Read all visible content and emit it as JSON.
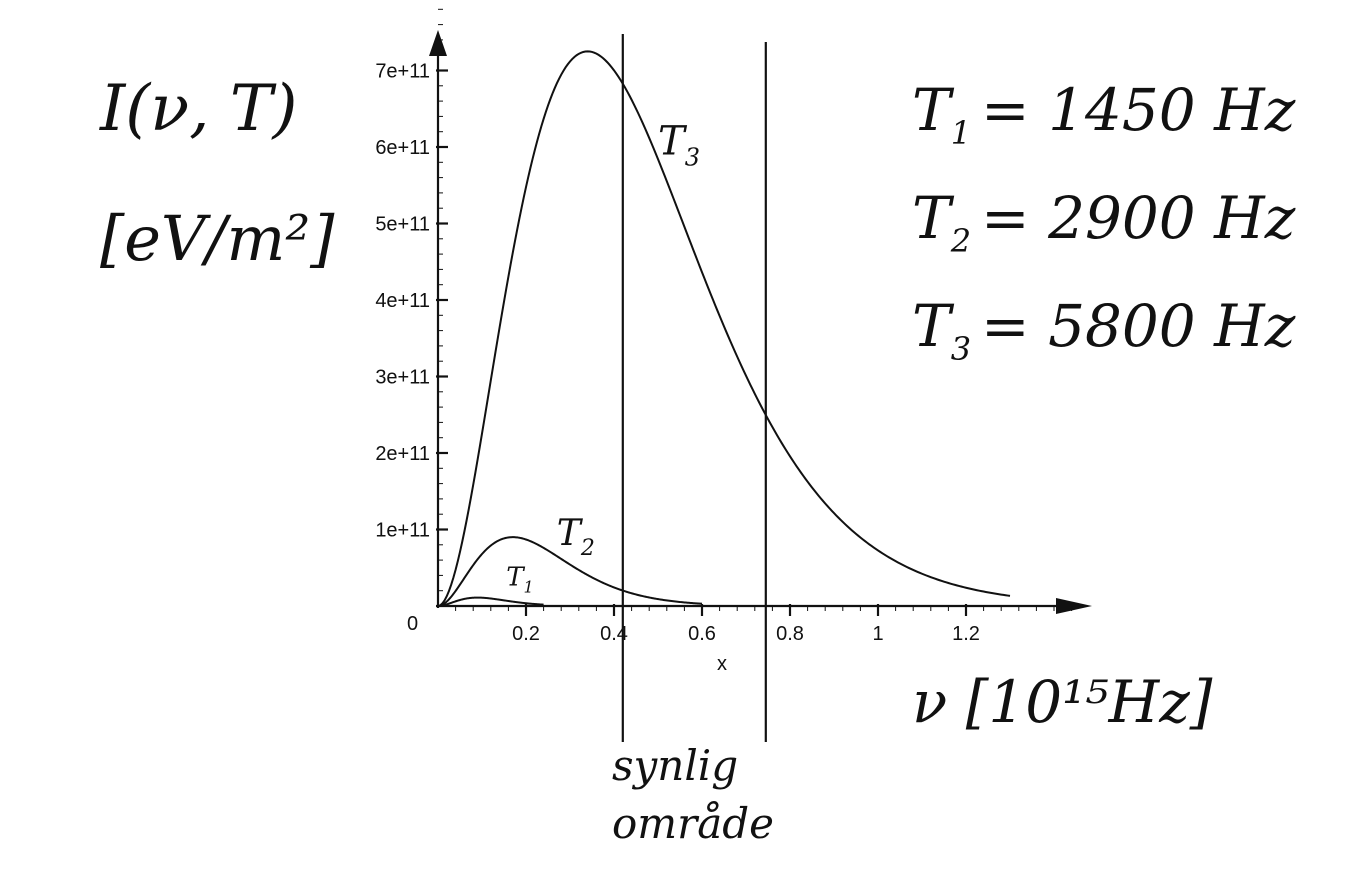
{
  "chart_data": {
    "type": "line",
    "ylabel_line1": "I(ν, T)",
    "ylabel_line2": "[eV/m²]",
    "xlabel": "ν [10¹⁵Hz]",
    "x_axis_symbol": "x",
    "origin_label": "0",
    "xlim": [
      0,
      1.47
    ],
    "ylim": [
      0,
      780000000000.0
    ],
    "x_ticks": [
      0.2,
      0.4,
      0.6,
      0.8,
      1,
      1.2
    ],
    "x_tick_labels": [
      "0.2",
      "0.4",
      "0.6",
      "0.8",
      "1",
      "1.2"
    ],
    "y_ticks": [
      100000000000.0,
      200000000000.0,
      300000000000.0,
      400000000000.0,
      500000000000.0,
      600000000000.0,
      700000000000.0
    ],
    "y_tick_labels": [
      "1e+11",
      "2e+11",
      "3e+11",
      "4e+11",
      "5e+11",
      "6e+11",
      "7e+11"
    ],
    "legend": [
      {
        "symbol": "T",
        "sub": "1",
        "text": "= 1450 Hz"
      },
      {
        "symbol": "T",
        "sub": "2",
        "text": "= 2900 Hz"
      },
      {
        "symbol": "T",
        "sub": "3",
        "text": "= 5800 Hz"
      }
    ],
    "series": [
      {
        "name": "T1",
        "sub": "1",
        "peak_x": 0.09,
        "peak_y": 11000000000.0,
        "x_end": 0.24,
        "label_at": [
          0.155,
          27000000000.0
        ]
      },
      {
        "name": "T2",
        "sub": "2",
        "peak_x": 0.17,
        "peak_y": 90000000000.0,
        "x_end": 0.6,
        "label_at": [
          0.27,
          80000000000.0
        ]
      },
      {
        "name": "T3",
        "sub": "3",
        "peak_x": 0.34,
        "peak_y": 725000000000.0,
        "x_end": 1.3,
        "label_at": [
          0.5,
          590000000000.0
        ]
      }
    ],
    "visible_region": {
      "x_start": 0.42,
      "x_end": 0.745,
      "label_line1": "synlig",
      "label_line2": "område"
    }
  }
}
